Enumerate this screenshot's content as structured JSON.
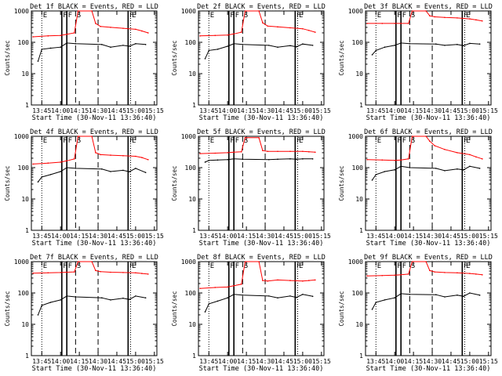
{
  "figure": {
    "colors": {
      "events": "#000000",
      "lld": "#ff0000",
      "axes": "#000000",
      "background": "#ffffff"
    }
  },
  "common": {
    "xlabel": "Start Time (30-Nov-11 13:36:40)",
    "ylabel": "Counts/sec",
    "xticks": [
      "13:45",
      "14:00",
      "14:15",
      "14:30",
      "14:45",
      "15:00",
      "15:15"
    ],
    "yticks": [
      "1",
      "10",
      "100",
      "1000"
    ],
    "event_markers": [
      {
        "label": "E",
        "time": "13:45",
        "style": "dotted"
      },
      {
        "label": "F",
        "time": "14:01",
        "style": "solid"
      },
      {
        "label": "F",
        "time": "14:05",
        "style": "solid"
      },
      {
        "label": "S",
        "time": "14:12",
        "style": "dashed"
      },
      {
        "label": "",
        "time": "14:30",
        "style": "dashed"
      },
      {
        "label": "F",
        "time": "14:54",
        "style": "solid"
      },
      {
        "label": "E",
        "time": "14:56",
        "style": "dotted"
      }
    ]
  },
  "chart_data": [
    {
      "type": "line",
      "title": "Det 1f BLACK = Events, RED = LLD",
      "xlabel": "Start Time (30-Nov-11 13:36:40)",
      "ylabel": "Counts/sec",
      "xlim": [
        "13:36:40",
        "15:17"
      ],
      "ylim": [
        1,
        1000
      ],
      "yscale": "log",
      "series": [
        {
          "name": "RED = LLD",
          "color": "#ff0000",
          "x": [
            "13:38",
            "13:50",
            "14:00",
            "14:05",
            "14:11",
            "14:14",
            "14:25",
            "14:28",
            "14:32",
            "14:40",
            "14:50",
            "15:00",
            "15:05",
            "15:10"
          ],
          "values": [
            150,
            160,
            165,
            180,
            200,
            1000,
            1000,
            400,
            320,
            300,
            280,
            260,
            230,
            200
          ]
        },
        {
          "name": "BLACK = Events",
          "color": "#000000",
          "x": [
            "13:42",
            "13:45",
            "13:52",
            "14:00",
            "14:05",
            "14:12",
            "14:33",
            "14:40",
            "14:50",
            "14:55",
            "15:00",
            "15:08"
          ],
          "values": [
            25,
            60,
            65,
            70,
            95,
            90,
            85,
            70,
            80,
            75,
            90,
            85
          ]
        }
      ]
    },
    {
      "type": "line",
      "title": "Det 2f BLACK = Events, RED = LLD",
      "xlabel": "Start Time (30-Nov-11 13:36:40)",
      "ylabel": "Counts/sec",
      "xlim": [
        "13:36:40",
        "15:17"
      ],
      "ylim": [
        1,
        1000
      ],
      "yscale": "log",
      "series": [
        {
          "name": "RED = LLD",
          "color": "#ff0000",
          "x": [
            "13:38",
            "13:50",
            "14:00",
            "14:05",
            "14:11",
            "14:14",
            "14:25",
            "14:28",
            "14:32",
            "14:40",
            "14:50",
            "15:00",
            "15:05",
            "15:10"
          ],
          "values": [
            160,
            165,
            170,
            185,
            210,
            1000,
            1000,
            420,
            330,
            310,
            290,
            270,
            240,
            210
          ]
        },
        {
          "name": "BLACK = Events",
          "color": "#000000",
          "x": [
            "13:42",
            "13:45",
            "13:52",
            "14:00",
            "14:05",
            "14:12",
            "14:33",
            "14:40",
            "14:50",
            "14:55",
            "15:00",
            "15:08"
          ],
          "values": [
            30,
            55,
            60,
            75,
            90,
            85,
            80,
            70,
            78,
            72,
            88,
            80
          ]
        }
      ]
    },
    {
      "type": "line",
      "title": "Det 3f BLACK = Events, RED = LLD",
      "xlabel": "Start Time (30-Nov-11 13:36:40)",
      "ylabel": "Counts/sec",
      "xlim": [
        "13:36:40",
        "15:17"
      ],
      "ylim": [
        1,
        1000
      ],
      "yscale": "log",
      "series": [
        {
          "name": "RED = LLD",
          "color": "#ff0000",
          "x": [
            "13:38",
            "13:50",
            "14:00",
            "14:05",
            "14:11",
            "14:14",
            "14:25",
            "14:28",
            "14:32",
            "14:40",
            "14:50",
            "15:00",
            "15:05",
            "15:10"
          ],
          "values": [
            400,
            400,
            400,
            400,
            400,
            1000,
            1000,
            700,
            650,
            620,
            600,
            560,
            520,
            480
          ]
        },
        {
          "name": "BLACK = Events",
          "color": "#000000",
          "x": [
            "13:42",
            "13:45",
            "13:52",
            "14:00",
            "14:05",
            "14:12",
            "14:33",
            "14:40",
            "14:50",
            "14:55",
            "15:00",
            "15:08"
          ],
          "values": [
            40,
            55,
            70,
            80,
            95,
            90,
            88,
            80,
            85,
            78,
            92,
            88
          ]
        }
      ]
    },
    {
      "type": "line",
      "title": "Det 4f BLACK = Events, RED = LLD",
      "xlabel": "Start Time (30-Nov-11 13:36:40)",
      "ylabel": "Counts/sec",
      "xlim": [
        "13:36:40",
        "15:17"
      ],
      "ylim": [
        1,
        1000
      ],
      "yscale": "log",
      "series": [
        {
          "name": "RED = LLD",
          "color": "#ff0000",
          "x": [
            "13:38",
            "13:50",
            "14:00",
            "14:05",
            "14:11",
            "14:14",
            "14:25",
            "14:28",
            "14:32",
            "14:40",
            "14:50",
            "15:00",
            "15:05",
            "15:10"
          ],
          "values": [
            130,
            140,
            150,
            165,
            190,
            1000,
            1000,
            300,
            260,
            250,
            240,
            230,
            210,
            180
          ]
        },
        {
          "name": "BLACK = Events",
          "color": "#000000",
          "x": [
            "13:42",
            "13:45",
            "13:52",
            "14:00",
            "14:05",
            "14:12",
            "14:33",
            "14:40",
            "14:50",
            "14:55",
            "15:00",
            "15:08"
          ],
          "values": [
            35,
            50,
            60,
            75,
            100,
            95,
            90,
            75,
            82,
            74,
            95,
            70
          ]
        }
      ]
    },
    {
      "type": "line",
      "title": "Det 5f BLACK = Events, RED = LLD",
      "xlabel": "Start Time (30-Nov-11 13:36:40)",
      "ylabel": "Counts/sec",
      "xlim": [
        "13:36:40",
        "15:17"
      ],
      "ylim": [
        1,
        1000
      ],
      "yscale": "log",
      "series": [
        {
          "name": "RED = LLD",
          "color": "#ff0000",
          "x": [
            "13:38",
            "13:50",
            "14:00",
            "14:05",
            "14:11",
            "14:14",
            "14:25",
            "14:28",
            "14:32",
            "14:40",
            "14:50",
            "15:00",
            "15:05",
            "15:10"
          ],
          "values": [
            280,
            290,
            300,
            310,
            320,
            900,
            900,
            350,
            330,
            330,
            330,
            330,
            320,
            310
          ]
        },
        {
          "name": "BLACK = Events",
          "color": "#000000",
          "x": [
            "13:42",
            "13:45",
            "13:52",
            "14:00",
            "14:05",
            "14:12",
            "14:33",
            "14:40",
            "14:50",
            "14:55",
            "15:00",
            "15:08"
          ],
          "values": [
            150,
            170,
            175,
            180,
            190,
            185,
            180,
            185,
            190,
            185,
            190,
            190
          ]
        }
      ]
    },
    {
      "type": "line",
      "title": "Det 6f BLACK = Events, RED = LLD",
      "xlabel": "Start Time (30-Nov-11 13:36:40)",
      "ylabel": "Counts/sec",
      "xlim": [
        "13:36:40",
        "15:17"
      ],
      "ylim": [
        1,
        1000
      ],
      "yscale": "log",
      "series": [
        {
          "name": "RED = LLD",
          "color": "#ff0000",
          "x": [
            "13:38",
            "13:50",
            "14:00",
            "14:05",
            "14:11",
            "14:14",
            "14:25",
            "14:28",
            "14:32",
            "14:40",
            "14:50",
            "15:00",
            "15:05",
            "15:10"
          ],
          "values": [
            180,
            175,
            170,
            175,
            190,
            1000,
            1000,
            700,
            500,
            380,
            300,
            260,
            220,
            190
          ]
        },
        {
          "name": "BLACK = Events",
          "color": "#000000",
          "x": [
            "13:42",
            "13:45",
            "13:52",
            "14:00",
            "14:05",
            "14:12",
            "14:33",
            "14:40",
            "14:50",
            "14:55",
            "15:00",
            "15:08"
          ],
          "values": [
            40,
            60,
            75,
            85,
            110,
            100,
            95,
            80,
            90,
            85,
            110,
            95
          ]
        }
      ]
    },
    {
      "type": "line",
      "title": "Det 7f BLACK = Events, RED = LLD",
      "xlabel": "Start Time (30-Nov-11 13:36:40)",
      "ylabel": "Counts/sec",
      "xlim": [
        "13:36:40",
        "15:17"
      ],
      "ylim": [
        1,
        1000
      ],
      "yscale": "log",
      "series": [
        {
          "name": "RED = LLD",
          "color": "#ff0000",
          "x": [
            "13:38",
            "13:50",
            "14:00",
            "14:05",
            "14:11",
            "14:14",
            "14:25",
            "14:28",
            "14:32",
            "14:40",
            "14:50",
            "15:00",
            "15:05",
            "15:10"
          ],
          "values": [
            430,
            440,
            450,
            460,
            470,
            1000,
            1000,
            520,
            480,
            460,
            450,
            440,
            420,
            400
          ]
        },
        {
          "name": "BLACK = Events",
          "color": "#000000",
          "x": [
            "13:42",
            "13:45",
            "13:52",
            "14:00",
            "14:05",
            "14:12",
            "14:33",
            "14:40",
            "14:50",
            "14:55",
            "15:00",
            "15:08"
          ],
          "values": [
            20,
            40,
            50,
            60,
            80,
            75,
            70,
            60,
            68,
            62,
            80,
            70
          ]
        }
      ]
    },
    {
      "type": "line",
      "title": "Det 8f BLACK = Events, RED = LLD",
      "xlabel": "Start Time (30-Nov-11 13:36:40)",
      "ylabel": "Counts/sec",
      "xlim": [
        "13:36:40",
        "15:17"
      ],
      "ylim": [
        1,
        1000
      ],
      "yscale": "log",
      "series": [
        {
          "name": "RED = LLD",
          "color": "#ff0000",
          "x": [
            "13:38",
            "13:50",
            "14:00",
            "14:05",
            "14:11",
            "14:14",
            "14:25",
            "14:28",
            "14:32",
            "14:40",
            "14:50",
            "15:00",
            "15:05",
            "15:10"
          ],
          "values": [
            140,
            150,
            155,
            170,
            190,
            1000,
            1000,
            250,
            240,
            260,
            250,
            240,
            250,
            260
          ]
        },
        {
          "name": "BLACK = Events",
          "color": "#000000",
          "x": [
            "13:42",
            "13:45",
            "13:52",
            "14:00",
            "14:05",
            "14:12",
            "14:33",
            "14:40",
            "14:50",
            "14:55",
            "15:00",
            "15:08"
          ],
          "values": [
            25,
            45,
            55,
            70,
            90,
            85,
            80,
            70,
            80,
            72,
            90,
            78
          ]
        }
      ]
    },
    {
      "type": "line",
      "title": "Det 9f BLACK = Events, RED = LLD",
      "xlabel": "Start Time (30-Nov-11 13:36:40)",
      "ylabel": "Counts/sec",
      "xlim": [
        "13:36:40",
        "15:17"
      ],
      "ylim": [
        1,
        1000
      ],
      "yscale": "log",
      "series": [
        {
          "name": "RED = LLD",
          "color": "#ff0000",
          "x": [
            "13:38",
            "13:50",
            "14:00",
            "14:05",
            "14:11",
            "14:14",
            "14:25",
            "14:28",
            "14:32",
            "14:40",
            "14:50",
            "15:00",
            "15:05",
            "15:10"
          ],
          "values": [
            350,
            360,
            370,
            380,
            400,
            1000,
            1000,
            520,
            470,
            450,
            440,
            420,
            400,
            380
          ]
        },
        {
          "name": "BLACK = Events",
          "color": "#000000",
          "x": [
            "13:42",
            "13:45",
            "13:52",
            "14:00",
            "14:05",
            "14:12",
            "14:33",
            "14:40",
            "14:50",
            "14:55",
            "15:00",
            "15:08"
          ],
          "values": [
            30,
            50,
            60,
            70,
            95,
            90,
            88,
            75,
            85,
            78,
            100,
            85
          ]
        }
      ]
    }
  ]
}
